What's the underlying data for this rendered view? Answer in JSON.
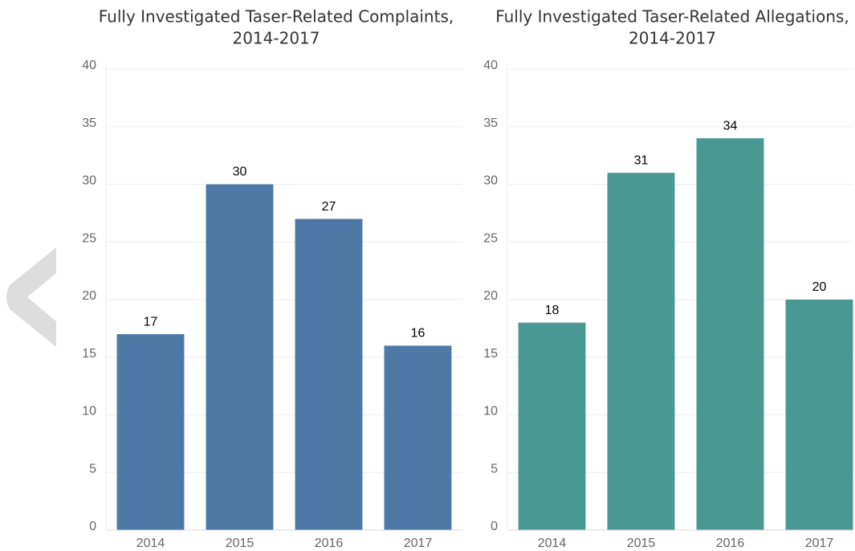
{
  "chart_data": [
    {
      "type": "bar",
      "title": [
        "Fully Investigated Taser-Related Complaints,",
        "2014-2017"
      ],
      "categories": [
        "2014",
        "2015",
        "2016",
        "2017"
      ],
      "values": [
        17,
        30,
        27,
        16
      ],
      "color": "#4e79a7",
      "ylim": [
        0,
        40
      ],
      "yticks": [
        0,
        5,
        10,
        15,
        20,
        25,
        30,
        35,
        40
      ],
      "grid": true
    },
    {
      "type": "bar",
      "title": [
        "Fully Investigated Taser-Related Allegations,",
        "2014-2017"
      ],
      "categories": [
        "2014",
        "2015",
        "2016",
        "2017"
      ],
      "values": [
        18,
        31,
        34,
        20
      ],
      "color": "#499894",
      "ylim": [
        0,
        40
      ],
      "yticks": [
        0,
        5,
        10,
        15,
        20,
        25,
        30,
        35,
        40
      ],
      "grid": true
    }
  ]
}
